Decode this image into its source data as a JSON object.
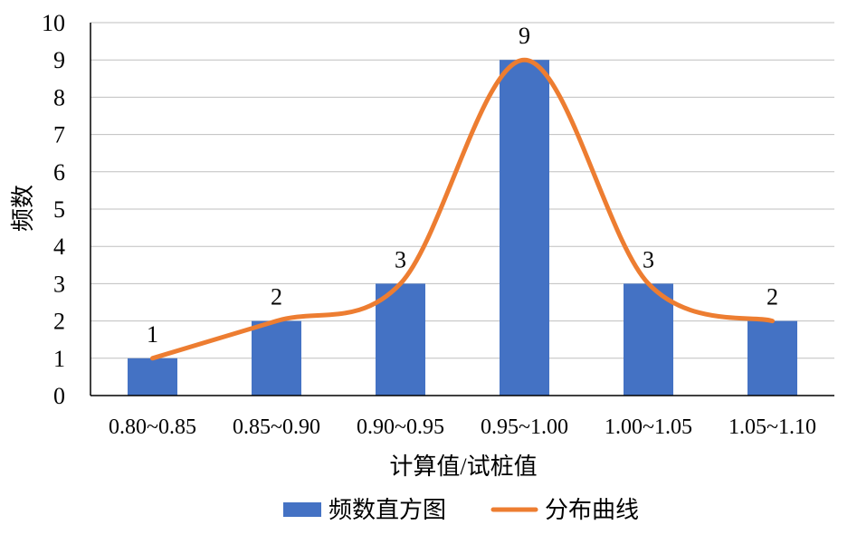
{
  "chart_data": {
    "type": "bar",
    "categories": [
      "0.80~0.85",
      "0.85~0.90",
      "0.90~0.95",
      "0.95~1.00",
      "1.00~1.05",
      "1.05~1.10"
    ],
    "series": [
      {
        "name": "频数直方图",
        "type": "bar",
        "values": [
          1,
          2,
          3,
          9,
          3,
          2
        ],
        "color": "#4472C4"
      },
      {
        "name": "分布曲线",
        "type": "line",
        "smooth": true,
        "values": [
          1,
          2,
          3,
          9,
          3,
          2
        ],
        "color": "#ED7D31"
      }
    ],
    "data_labels": [
      "1",
      "2",
      "3",
      "9",
      "3",
      "2"
    ],
    "xlabel": "计算值/试桩值",
    "ylabel": "频数",
    "ylim": [
      0,
      10
    ],
    "yticks": [
      "0",
      "1",
      "2",
      "3",
      "4",
      "5",
      "6",
      "7",
      "8",
      "9",
      "10"
    ],
    "grid": true,
    "legend": "bottom"
  }
}
